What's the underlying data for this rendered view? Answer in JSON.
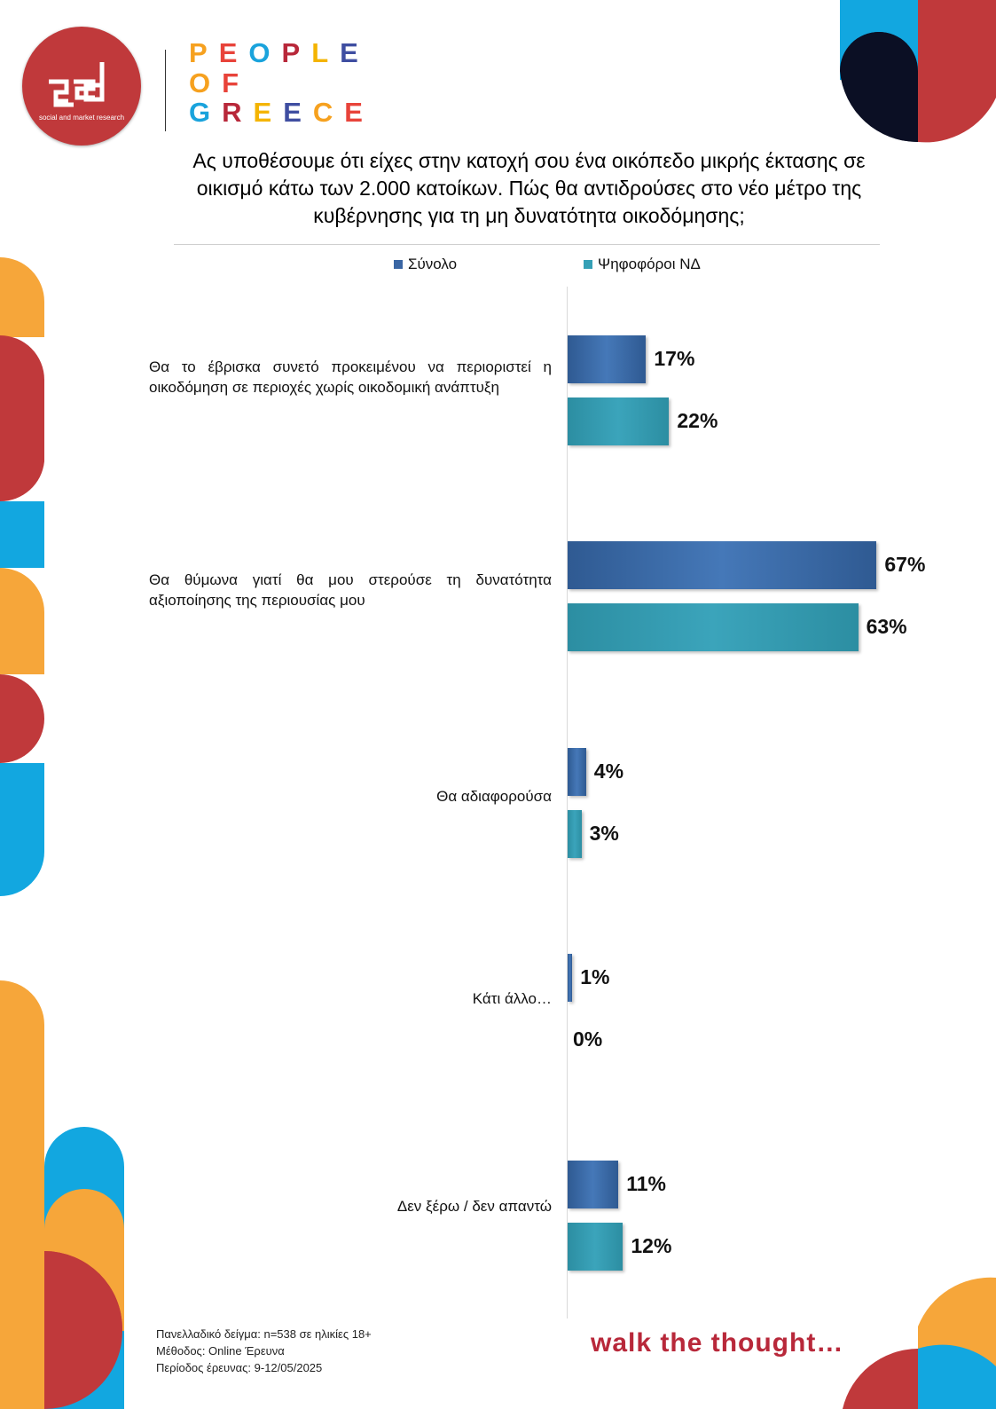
{
  "brand": {
    "logo_sub": "social and market research",
    "name_lines": [
      "PEOPLE",
      "OF",
      "GREECE"
    ],
    "letter_colors": [
      "#f6a11f",
      "#e8433a",
      "#1aa3dc",
      "#b8283a",
      "#f4b400",
      "#3f4ea1"
    ]
  },
  "colors": {
    "series1": "#3a66a4",
    "series2": "#35a0b6",
    "accent_red": "#c0393b",
    "accent_orange": "#f6a63a",
    "accent_blue": "#12a7e0",
    "accent_navy": "#0b0f24"
  },
  "title": "Ας υποθέσουμε ότι είχες στην κατοχή σου ένα οικόπεδο μικρής έκτασης σε οικισμό κάτω των 2.000 κατοίκων. Πώς θα αντιδρούσες στο νέο μέτρο της κυβέρνησης για τη μη δυνατότητα οικοδόμησης;",
  "legend": {
    "series1": "Σύνολο",
    "series2": "Ψηφοφόροι ΝΔ",
    "placement": "top"
  },
  "chart_data": {
    "type": "bar",
    "orientation": "horizontal",
    "categories": [
      "Θα το έβρισκα συνετό προκειμένου να περιοριστεί η οικοδόμηση σε περιοχές χωρίς οικοδομική ανάπτυξη",
      "Θα θύμωνα γιατί θα μου στερούσε τη δυνατότητα αξιοποίησης της περιουσίας μου",
      "Θα αδιαφορούσα",
      "Κάτι άλλο…",
      "Δεν ξέρω / δεν απαντώ"
    ],
    "series": [
      {
        "name": "Σύνολο",
        "values": [
          17,
          67,
          4,
          1,
          11
        ]
      },
      {
        "name": "Ψηφοφόροι ΝΔ",
        "values": [
          22,
          63,
          3,
          0,
          12
        ]
      }
    ],
    "value_labels": [
      [
        "17%",
        "67%",
        "4%",
        "1%",
        "11%"
      ],
      [
        "22%",
        "63%",
        "3%",
        "0%",
        "12%"
      ]
    ],
    "xlim": [
      0,
      67
    ],
    "grid": false
  },
  "footnote": [
    "Πανελλαδικό δείγμα: n=538 σε ηλικίες 18+",
    "Μέθοδος: Online Έρευνα",
    "Περίοδος έρευνας: 9-12/05/2025"
  ],
  "tagline": "walk the thought…"
}
